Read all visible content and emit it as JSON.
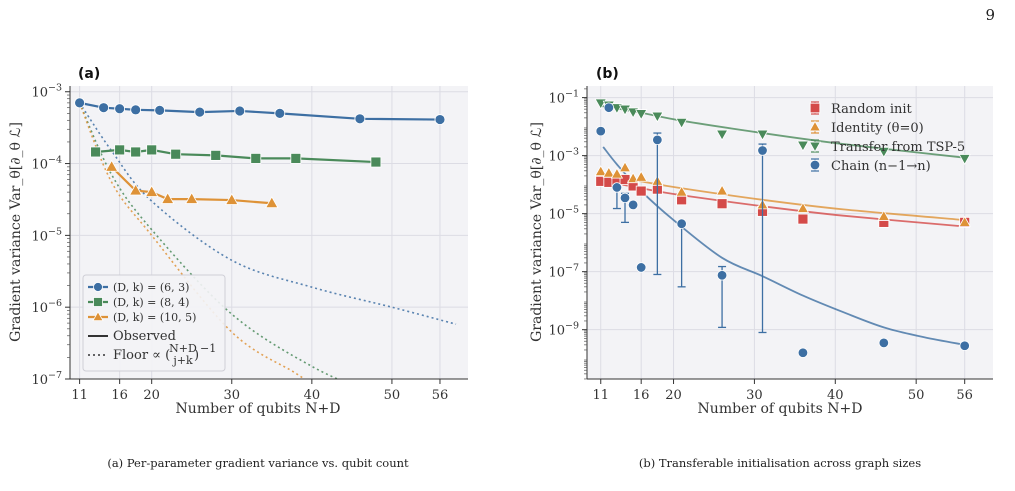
{
  "page_number": "9",
  "colors": {
    "blue": "#3d6fa3",
    "green": "#4a8a5a",
    "orange": "#de9237",
    "red": "#d44a49",
    "axis_bg": "#f3f3f6",
    "grid": "#dcdce4"
  },
  "chart_data": [
    {
      "type": "line",
      "panel_label": "(a)",
      "xlabel": "Number of qubits N+D",
      "ylabel": "Gradient variance Var_θ[∂_θ ℒ]",
      "xlim": [
        9.8,
        59.5
      ],
      "ylim_log10": [
        -7,
        -2.92
      ],
      "yscale": "log",
      "x_ticks": [
        11,
        16,
        20,
        30,
        40,
        50,
        56
      ],
      "y_ticks": [
        {
          "exp": -7,
          "label": "10^-7"
        },
        {
          "exp": -6,
          "label": "10^-6"
        },
        {
          "exp": -5,
          "label": "10^-5"
        },
        {
          "exp": -4,
          "label": "10^-4"
        },
        {
          "exp": -3,
          "label": "10^-3"
        }
      ],
      "grid": true,
      "legend_position": "lower-left",
      "series": [
        {
          "name": "(D, k) = (6, 3)",
          "color": "#3d6fa3",
          "marker": "circle",
          "x": [
            11,
            14,
            16,
            18,
            21,
            26,
            31,
            36,
            46,
            56
          ],
          "y": [
            0.0007,
            0.0006,
            0.00058,
            0.00056,
            0.00055,
            0.00052,
            0.00054,
            0.0005,
            0.00042,
            0.00041
          ]
        },
        {
          "name": "(D, k) = (8, 4)",
          "color": "#4a8a5a",
          "marker": "square",
          "x": [
            13,
            16,
            18,
            20,
            23,
            28,
            33,
            38,
            48
          ],
          "y": [
            0.000145,
            0.000155,
            0.000145,
            0.000155,
            0.000135,
            0.00013,
            0.000118,
            0.000118,
            0.000105
          ]
        },
        {
          "name": "(D, k) = (10, 5)",
          "color": "#de9237",
          "marker": "triangle",
          "x": [
            15,
            18,
            20,
            22,
            25,
            30,
            35
          ],
          "y": [
            9e-05,
            4.2e-05,
            4e-05,
            3.2e-05,
            3.2e-05,
            3.1e-05,
            2.8e-05
          ]
        }
      ],
      "floors": [
        {
          "color": "#3d6fa3",
          "x": [
            11,
            15,
            20,
            30,
            40,
            50,
            58
          ],
          "y": [
            0.0007,
            0.00015,
            3e-05,
            4.5e-06,
            1.9e-06,
            1e-06,
            5.8e-07
          ]
        },
        {
          "color": "#4a8a5a",
          "x": [
            11,
            15,
            20,
            30,
            40,
            48
          ],
          "y": [
            0.0007,
            7e-05,
            1.2e-05,
            8e-07,
            1.5e-07,
            6e-08
          ]
        },
        {
          "color": "#de9237",
          "x": [
            11,
            15,
            20,
            30,
            38,
            42
          ],
          "y": [
            0.0007,
            5.5e-05,
            1e-05,
            4.5e-07,
            1.2e-07,
            6e-08
          ]
        }
      ],
      "legend_extra": [
        "Observed",
        "Floor ∝ (N+D choose j+k)^-1"
      ],
      "legend_floor_prefix": "Floor ∝ ",
      "legend_floor_binom_top": "N+D",
      "legend_floor_binom_bottom": "j+k",
      "legend_floor_exp": "−1"
    },
    {
      "type": "scatter",
      "panel_label": "(b)",
      "xlabel": "Number of qubits N+D",
      "ylabel": "Gradient variance Var_θ[∂_θ ℒ]",
      "xlim": [
        9.3,
        59.5
      ],
      "ylim_log10": [
        -10.7,
        -0.6
      ],
      "yscale": "log",
      "x_ticks": [
        11,
        16,
        20,
        30,
        40,
        50,
        56
      ],
      "y_ticks": [
        {
          "exp": -9,
          "label": "10^-9"
        },
        {
          "exp": -7,
          "label": "10^-7"
        },
        {
          "exp": -5,
          "label": "10^-5"
        },
        {
          "exp": -3,
          "label": "10^-3"
        },
        {
          "exp": -1,
          "label": "10^-1"
        }
      ],
      "grid": true,
      "legend_position": "upper-right",
      "series": [
        {
          "name": "Random init",
          "color": "#d44a49",
          "marker": "square",
          "x": [
            11,
            12,
            13,
            14,
            15,
            16,
            18,
            21,
            26,
            31,
            36,
            46,
            56
          ],
          "y": [
            0.00013,
            0.00012,
            0.00013,
            0.00015,
            9e-05,
            6e-05,
            7e-05,
            3e-05,
            2.2e-05,
            1.2e-05,
            6.5e-06,
            5e-06,
            5e-06
          ]
        },
        {
          "name": "Identity (θ=0)",
          "color": "#de9237",
          "marker": "triangle",
          "x": [
            11,
            12,
            13,
            14,
            15,
            16,
            18,
            21,
            26,
            31,
            36,
            46,
            56
          ],
          "y": [
            0.00028,
            0.00025,
            0.00023,
            0.00038,
            0.00016,
            0.00018,
            0.00013,
            5.5e-05,
            6e-05,
            2e-05,
            1.5e-05,
            8e-06,
            5e-06
          ]
        },
        {
          "name": "Transfer from TSP-5",
          "color": "#4a8a5a",
          "marker": "triangle-down",
          "x": [
            11,
            12,
            13,
            14,
            15,
            16,
            18,
            21,
            26,
            31,
            36,
            46,
            56
          ],
          "y": [
            0.065,
            0.055,
            0.045,
            0.04,
            0.032,
            0.028,
            0.023,
            0.014,
            0.0055,
            0.0055,
            0.0023,
            0.0014,
            0.0008
          ]
        },
        {
          "name": "Chain (n−1 → n)",
          "color": "#3d6fa3",
          "marker": "circle",
          "x": [
            11,
            12,
            13,
            14,
            15,
            16,
            18,
            21,
            26,
            31,
            36,
            46,
            56
          ],
          "y": [
            0.007,
            0.045,
            8e-05,
            3.5e-05,
            2e-05,
            1.4e-07,
            0.0035,
            4.5e-06,
            7.5e-08,
            0.0015,
            1.6e-10,
            3.5e-10,
            2.8e-10
          ],
          "err_low": [
            null,
            null,
            1.5e-05,
            5e-06,
            null,
            null,
            8e-08,
            3e-08,
            1.2e-09,
            8e-10,
            null,
            null,
            null
          ],
          "err_high": [
            null,
            null,
            8e-05,
            5e-05,
            null,
            null,
            0.006,
            4.5e-06,
            1.5e-07,
            0.0025,
            null,
            null,
            null
          ]
        }
      ],
      "fits": [
        {
          "color": "#d44a49",
          "x": [
            11,
            16,
            21,
            31,
            41,
            56
          ],
          "y": [
            0.00014,
            7.5e-05,
            4.3e-05,
            1.8e-05,
            8.5e-06,
            3.6e-06
          ]
        },
        {
          "color": "#de9237",
          "x": [
            11,
            16,
            21,
            31,
            41,
            56
          ],
          "y": [
            0.00024,
            0.00013,
            7.5e-05,
            3e-05,
            1.4e-05,
            6e-06
          ]
        },
        {
          "color": "#4a8a5a",
          "x": [
            11,
            16,
            21,
            31,
            41,
            56
          ],
          "y": [
            0.052,
            0.03,
            0.016,
            0.006,
            0.0025,
            0.00085
          ]
        },
        {
          "color": "#3d6fa3",
          "x": [
            11.3,
            13,
            16,
            20,
            26,
            31,
            36,
            41,
            46,
            51,
            56
          ],
          "y": [
            0.002,
            0.0005,
            6e-05,
            6e-06,
            3e-07,
            7e-08,
            1.5e-08,
            4e-09,
            1.2e-09,
            5.5e-10,
            3e-10
          ]
        }
      ],
      "legend_labels_display": [
        "Random init",
        "Identity (θ=0)",
        "Transfer from TSP-5",
        "Chain (n−1→n)"
      ]
    }
  ],
  "captions": {
    "a": "(a) Per-parameter gradient variance vs. qubit count",
    "b": "(b) Transferable initialisation across graph sizes"
  }
}
